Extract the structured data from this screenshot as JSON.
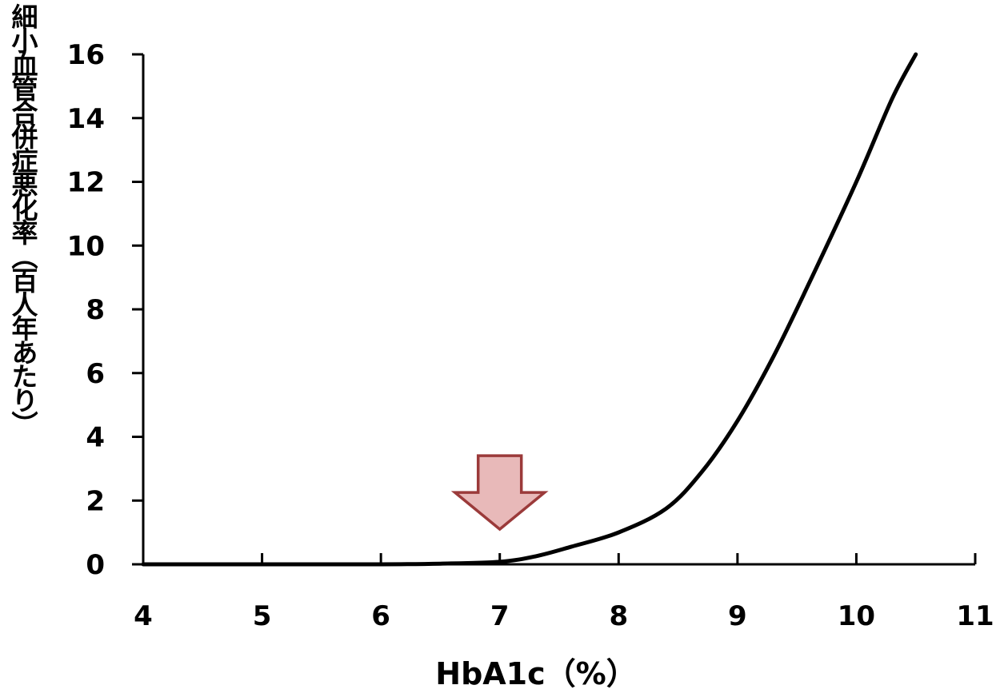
{
  "chart_data": {
    "type": "line",
    "title": "",
    "xlabel": "HbA1c（%）",
    "ylabel": "細小血管合併症悪化率（百人年あたり）",
    "xlim": [
      4,
      11
    ],
    "ylim": [
      0,
      16
    ],
    "x_ticks": [
      "4",
      "5",
      "6",
      "7",
      "8",
      "9",
      "10",
      "11"
    ],
    "y_ticks": [
      "0",
      "2",
      "4",
      "6",
      "8",
      "10",
      "12",
      "14",
      "16"
    ],
    "grid": false,
    "legend": "none",
    "series": [
      {
        "color": "#000000",
        "x": [
          4.0,
          5.0,
          6.0,
          6.5,
          7.0,
          7.3,
          7.6,
          8.0,
          8.4,
          8.7,
          9.0,
          9.3,
          9.6,
          10.0,
          10.3,
          10.5
        ],
        "y": [
          0.0,
          0.0,
          0.0,
          0.02,
          0.08,
          0.25,
          0.55,
          1.0,
          1.75,
          2.9,
          4.5,
          6.5,
          8.8,
          12.0,
          14.6,
          16.0
        ]
      }
    ],
    "annotations": [
      {
        "type": "arrow-down",
        "x": 7.0,
        "y_tip": 1.1,
        "fill": "#E8B9B9",
        "stroke": "#9B3A3A"
      }
    ]
  }
}
